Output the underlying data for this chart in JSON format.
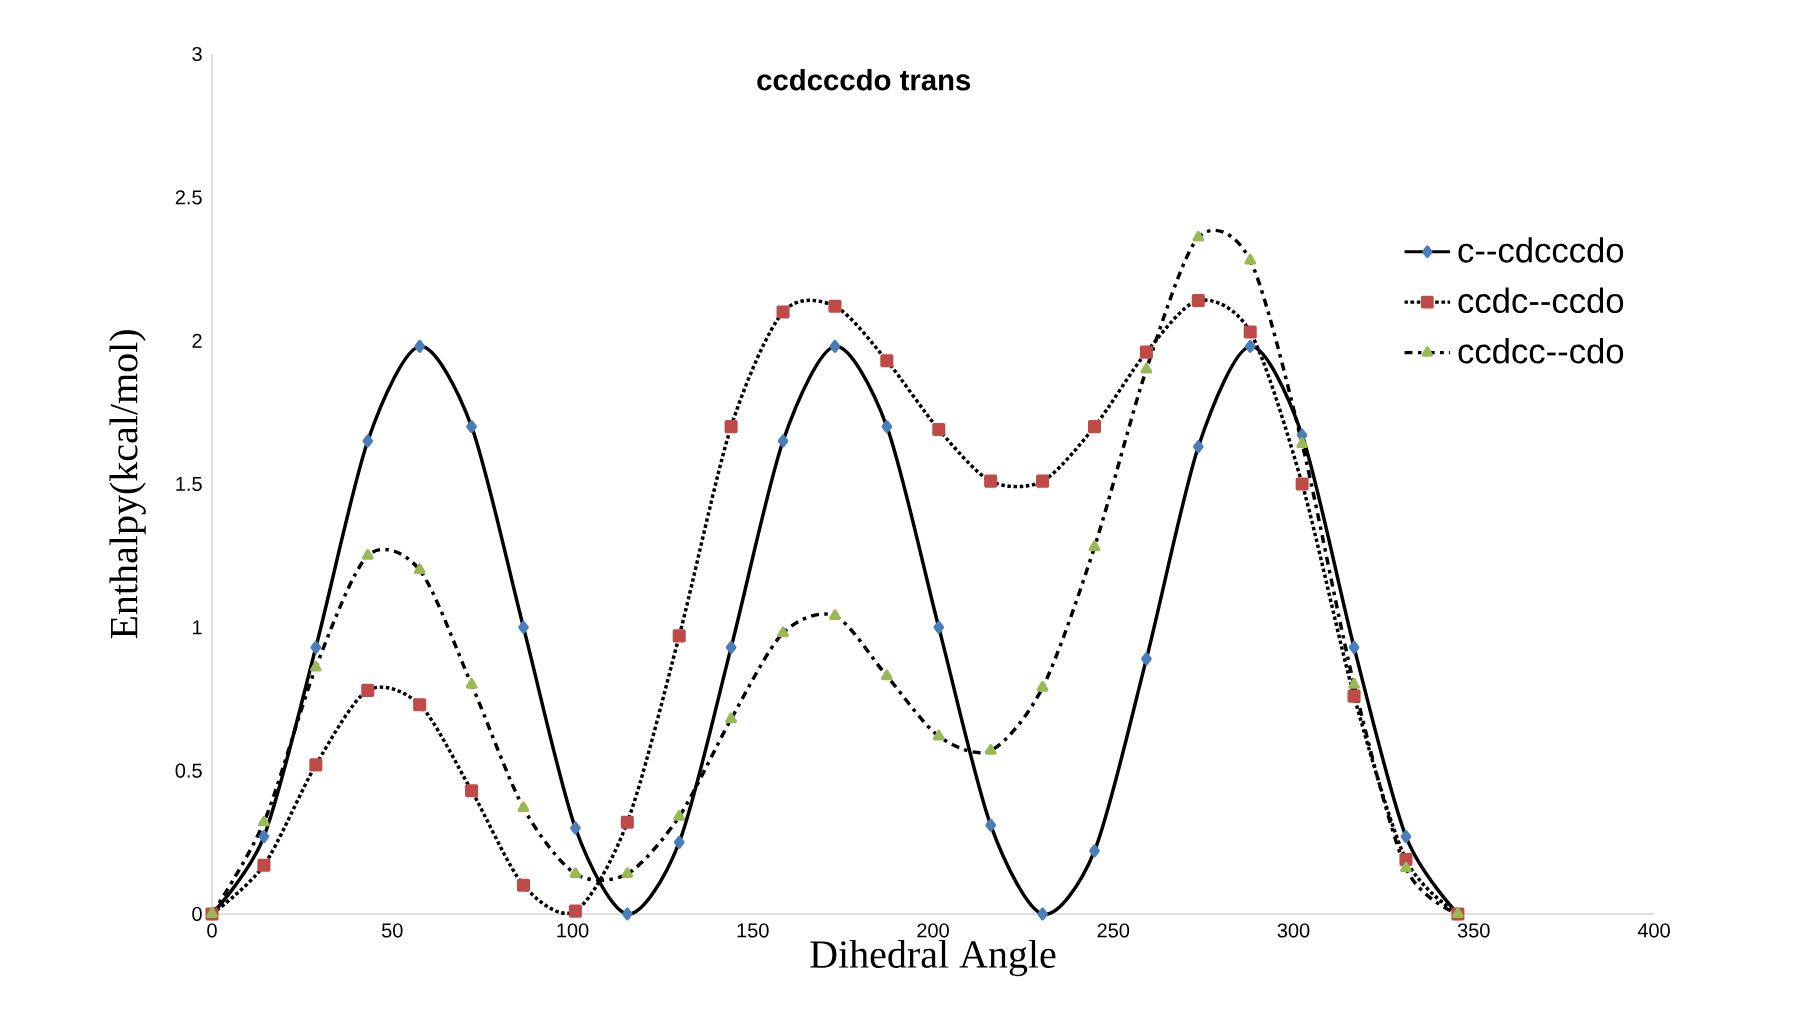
{
  "chart_data": {
    "type": "line",
    "title": "ccdcccdo trans",
    "xlabel": "Dihedral Angle",
    "ylabel": "Enthalpy(kcal/mol)",
    "x": [
      0,
      14.4,
      28.8,
      43.2,
      57.6,
      72,
      86.4,
      100.8,
      115.2,
      129.6,
      144,
      158.4,
      172.8,
      187.2,
      201.6,
      216,
      230.4,
      244.8,
      259.2,
      273.6,
      288,
      302.4,
      316.8,
      331.2,
      345.6
    ],
    "series": [
      {
        "name": "c--cdcccdo",
        "color": "#4a7ebb",
        "marker": "diamond",
        "line_style": "solid",
        "values": [
          0,
          0.27,
          0.93,
          1.65,
          1.98,
          1.7,
          1.0,
          0.3,
          0,
          0.25,
          0.93,
          1.65,
          1.98,
          1.7,
          1.0,
          0.31,
          0,
          0.22,
          0.89,
          1.63,
          1.98,
          1.67,
          0.93,
          0.27,
          0
        ]
      },
      {
        "name": "ccdc--ccdo",
        "color": "#be4b48",
        "marker": "square",
        "line_style": "dotted",
        "values": [
          0,
          0.17,
          0.52,
          0.78,
          0.73,
          0.43,
          0.1,
          0.01,
          0.32,
          0.97,
          1.7,
          2.1,
          2.12,
          1.93,
          1.69,
          1.51,
          1.51,
          1.7,
          1.96,
          2.14,
          2.03,
          1.5,
          0.76,
          0.19,
          0
        ]
      },
      {
        "name": "ccdcc--cdo",
        "color": "#98b954",
        "marker": "triangle",
        "line_style": "dashed",
        "values": [
          0,
          0.32,
          0.86,
          1.25,
          1.2,
          0.8,
          0.37,
          0.14,
          0.14,
          0.34,
          0.68,
          0.98,
          1.04,
          0.83,
          0.62,
          0.57,
          0.79,
          1.28,
          1.9,
          2.36,
          2.28,
          1.64,
          0.8,
          0.16,
          0
        ]
      }
    ],
    "xlim": [
      0,
      400
    ],
    "ylim": [
      0,
      3
    ],
    "xticks": [
      0,
      50,
      100,
      150,
      200,
      250,
      300,
      350,
      400
    ],
    "yticks": [
      0,
      0.5,
      1,
      1.5,
      2,
      2.5,
      3
    ],
    "legend": "right"
  }
}
